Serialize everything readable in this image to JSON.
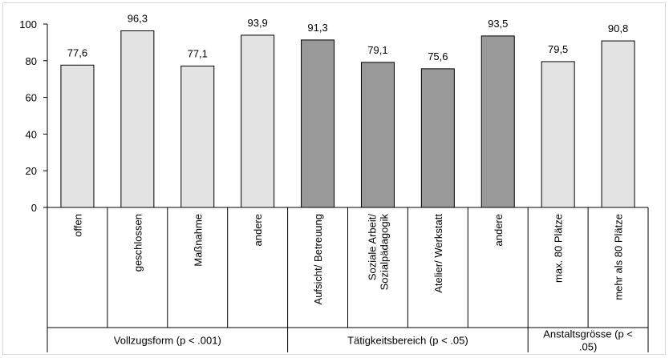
{
  "chart_data": {
    "type": "bar",
    "ylim": [
      0,
      100
    ],
    "yticks": [
      0,
      20,
      40,
      60,
      80,
      100
    ],
    "categories": [
      "offen",
      "geschlossen",
      "Maßnahme",
      "andere",
      "Aufsicht/ Betreuung",
      "Soziale Arbeit/ Sozialpädagogik",
      "Atelier/ Werkstatt",
      "andere",
      "max. 80 Plätze",
      "mehr als 80 Plätze"
    ],
    "category_lines": [
      [
        "offen"
      ],
      [
        "geschlossen"
      ],
      [
        "Maßnahme"
      ],
      [
        "andere"
      ],
      [
        "Aufsicht/ Betreuung"
      ],
      [
        "Soziale Arbeit/",
        "Sozialpädagogik"
      ],
      [
        "Atelier/ Werkstatt"
      ],
      [
        "andere"
      ],
      [
        "max. 80 Plätze"
      ],
      [
        "mehr als 80 Plätze"
      ]
    ],
    "values": [
      77.6,
      96.3,
      77.1,
      93.9,
      91.3,
      79.1,
      75.6,
      93.5,
      79.5,
      90.8
    ],
    "value_labels": [
      "77,6",
      "96,3",
      "77,1",
      "93,9",
      "91,3",
      "79,1",
      "75,6",
      "93,5",
      "79,5",
      "90,8"
    ],
    "groups": [
      {
        "label_lines": [
          "Vollzugsform (p < .001)"
        ],
        "start": 0,
        "end": 3,
        "color": "#e3e3e3"
      },
      {
        "label_lines": [
          "Tätigkeitsbereich (p < .05)"
        ],
        "start": 4,
        "end": 7,
        "color": "#999999"
      },
      {
        "label_lines": [
          "Anstaltsgrösse (p <",
          ".05)"
        ],
        "start": 8,
        "end": 9,
        "color": "#e3e3e3"
      }
    ],
    "grid": false,
    "legend": "none",
    "bar_outline_color": "#000000"
  }
}
